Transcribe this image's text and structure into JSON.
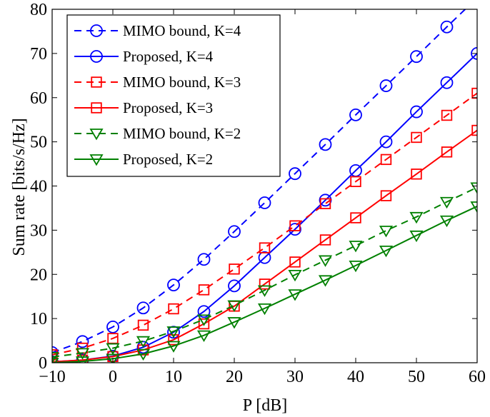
{
  "chart_data": {
    "type": "line",
    "title": "",
    "xlabel": "P [dB]",
    "ylabel": "Sum rate [bits/s/Hz]",
    "xlim": [
      -10,
      60
    ],
    "ylim": [
      0,
      80
    ],
    "xticks": [
      -10,
      0,
      10,
      20,
      30,
      40,
      50,
      60
    ],
    "xtick_labels": [
      "−10",
      "0",
      "10",
      "20",
      "30",
      "40",
      "50",
      "60"
    ],
    "yticks": [
      0,
      10,
      20,
      30,
      40,
      50,
      60,
      70,
      80
    ],
    "ytick_labels": [
      "0",
      "10",
      "20",
      "30",
      "40",
      "50",
      "60",
      "70",
      "80"
    ],
    "grid": false,
    "legend_position": "top-left",
    "x": [
      -10,
      -5,
      0,
      5,
      10,
      15,
      20,
      25,
      30,
      35,
      40,
      45,
      50,
      55,
      60
    ],
    "series": [
      {
        "name": "MIMO bound, K=4",
        "color": "#0000ff",
        "dash": "dashed",
        "marker": "circle",
        "values": [
          2.3,
          4.8,
          8.1,
          12.4,
          17.6,
          23.4,
          29.7,
          36.2,
          42.8,
          49.4,
          56.1,
          62.7,
          69.3,
          76.0,
          82.6
        ]
      },
      {
        "name": "Proposed, K=4",
        "color": "#0000ff",
        "dash": "solid",
        "marker": "circle",
        "values": [
          0.2,
          0.6,
          1.5,
          3.5,
          6.9,
          11.6,
          17.4,
          23.8,
          30.2,
          36.8,
          43.5,
          50.0,
          56.8,
          63.4,
          70.0
        ]
      },
      {
        "name": "MIMO bound, K=3",
        "color": "#ff0000",
        "dash": "dashed",
        "marker": "square",
        "values": [
          1.8,
          3.3,
          5.5,
          8.5,
          12.2,
          16.5,
          21.2,
          26.0,
          31.0,
          36.0,
          41.0,
          46.0,
          51.0,
          56.0,
          61.0
        ]
      },
      {
        "name": "Proposed, K=3",
        "color": "#ff0000",
        "dash": "solid",
        "marker": "square",
        "values": [
          0.2,
          0.6,
          1.4,
          2.9,
          5.2,
          8.8,
          12.8,
          17.8,
          22.8,
          27.8,
          32.8,
          37.8,
          42.7,
          47.7,
          52.6
        ]
      },
      {
        "name": "MIMO bound, K=2",
        "color": "#008000",
        "dash": "dashed",
        "marker": "triangle-down",
        "values": [
          1.3,
          2.2,
          3.3,
          4.9,
          7.1,
          9.8,
          13.0,
          16.4,
          19.9,
          23.2,
          26.5,
          29.9,
          33.0,
          36.4,
          39.7
        ]
      },
      {
        "name": "Proposed, K=2",
        "color": "#008000",
        "dash": "solid",
        "marker": "triangle-down",
        "values": [
          0.0,
          0.3,
          0.9,
          2.0,
          3.8,
          6.2,
          9.2,
          12.3,
          15.5,
          18.7,
          22.0,
          25.4,
          28.8,
          32.2,
          35.4
        ]
      }
    ]
  }
}
